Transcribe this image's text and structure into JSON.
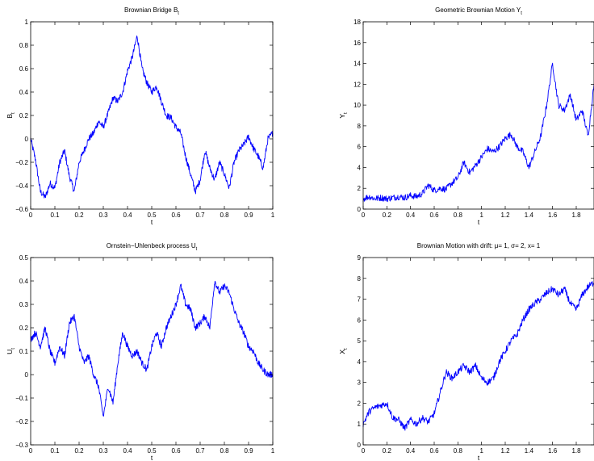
{
  "chart_data": [
    {
      "type": "line",
      "title": "Brownian Bridge B",
      "title_sub": "t",
      "xlabel": "t",
      "ylabel": "B",
      "ylabel_sub": "t",
      "xlim": [
        0,
        1
      ],
      "ylim": [
        -0.6,
        1
      ],
      "xticks": [
        0,
        0.1,
        0.2,
        0.3,
        0.4,
        0.5,
        0.6,
        0.7,
        0.8,
        0.9,
        1
      ],
      "xtick_labels": [
        "0",
        "0.1",
        "0.2",
        "0.3",
        "0.4",
        "0.5",
        "0.6",
        "0.7",
        "0.8",
        "0.9",
        "1"
      ],
      "yticks": [
        -0.6,
        -0.4,
        -0.2,
        0,
        0.2,
        0.4,
        0.6,
        0.8,
        1
      ],
      "ytick_labels": [
        "−0.6",
        "−0.4",
        "−0.2",
        "0",
        "0.2",
        "0.4",
        "0.6",
        "0.8",
        "1"
      ],
      "grid": false,
      "color": "#0000ff",
      "series": [
        {
          "x": [
            0,
            0.02,
            0.04,
            0.06,
            0.08,
            0.1,
            0.12,
            0.14,
            0.16,
            0.18,
            0.2,
            0.22,
            0.24,
            0.26,
            0.28,
            0.3,
            0.32,
            0.34,
            0.36,
            0.38,
            0.4,
            0.42,
            0.44,
            0.46,
            0.48,
            0.5,
            0.52,
            0.54,
            0.56,
            0.58,
            0.6,
            0.62,
            0.64,
            0.66,
            0.68,
            0.7,
            0.72,
            0.74,
            0.76,
            0.78,
            0.8,
            0.82,
            0.84,
            0.86,
            0.88,
            0.9,
            0.92,
            0.94,
            0.96,
            0.98,
            1
          ],
          "y": [
            0,
            -0.18,
            -0.45,
            -0.5,
            -0.38,
            -0.42,
            -0.2,
            -0.1,
            -0.32,
            -0.45,
            -0.2,
            -0.1,
            0.0,
            0.05,
            0.15,
            0.1,
            0.22,
            0.35,
            0.32,
            0.4,
            0.58,
            0.7,
            0.88,
            0.6,
            0.48,
            0.4,
            0.45,
            0.32,
            0.2,
            0.18,
            0.1,
            0.05,
            -0.15,
            -0.3,
            -0.45,
            -0.35,
            -0.1,
            -0.25,
            -0.35,
            -0.2,
            -0.3,
            -0.42,
            -0.2,
            -0.1,
            -0.05,
            0.02,
            -0.08,
            -0.15,
            -0.25,
            0.0,
            0.05
          ]
        }
      ]
    },
    {
      "type": "line",
      "title": "Geometric Brownian Motion Y",
      "title_sub": "t",
      "xlabel": "t",
      "ylabel": "Y",
      "ylabel_sub": "t",
      "xlim": [
        0,
        1.95
      ],
      "ylim": [
        0,
        18
      ],
      "xticks": [
        0,
        0.2,
        0.4,
        0.6,
        0.8,
        1,
        1.2,
        1.4,
        1.6,
        1.8
      ],
      "xtick_labels": [
        "0",
        "0.2",
        "0.4",
        "0.6",
        "0.8",
        "1",
        "1.2",
        "1.4",
        "1.6",
        "1.8"
      ],
      "yticks": [
        0,
        2,
        4,
        6,
        8,
        10,
        12,
        14,
        16,
        18
      ],
      "ytick_labels": [
        "0",
        "2",
        "4",
        "6",
        "8",
        "10",
        "12",
        "14",
        "16",
        "18"
      ],
      "grid": false,
      "color": "#0000ff",
      "series": [
        {
          "x": [
            0,
            0.05,
            0.1,
            0.15,
            0.2,
            0.25,
            0.3,
            0.35,
            0.4,
            0.45,
            0.5,
            0.55,
            0.6,
            0.65,
            0.7,
            0.75,
            0.8,
            0.85,
            0.9,
            0.95,
            1.0,
            1.05,
            1.1,
            1.15,
            1.2,
            1.25,
            1.3,
            1.35,
            1.4,
            1.45,
            1.5,
            1.55,
            1.6,
            1.65,
            1.7,
            1.75,
            1.8,
            1.85,
            1.9,
            1.95
          ],
          "y": [
            1.0,
            1.2,
            1.0,
            1.1,
            1.0,
            1.1,
            1.2,
            1.1,
            1.3,
            1.2,
            1.5,
            2.3,
            1.8,
            2.0,
            1.9,
            2.5,
            3.0,
            4.5,
            3.5,
            4.2,
            5.0,
            5.8,
            5.5,
            6.0,
            6.8,
            7.2,
            6.0,
            5.5,
            4.0,
            5.5,
            7.0,
            10.0,
            14.0,
            10.0,
            9.5,
            11.0,
            8.5,
            9.5,
            7.0,
            12.0
          ]
        }
      ]
    },
    {
      "type": "line",
      "title": "Ornstein−Uhlenbeck process U",
      "title_sub": "t",
      "xlabel": "t",
      "ylabel": "U",
      "ylabel_sub": "t",
      "xlim": [
        0,
        1
      ],
      "ylim": [
        -0.3,
        0.5
      ],
      "xticks": [
        0,
        0.1,
        0.2,
        0.3,
        0.4,
        0.5,
        0.6,
        0.7,
        0.8,
        0.9,
        1
      ],
      "xtick_labels": [
        "0",
        "0.1",
        "0.2",
        "0.3",
        "0.4",
        "0.5",
        "0.6",
        "0.7",
        "0.8",
        "0.9",
        "1"
      ],
      "yticks": [
        -0.3,
        -0.2,
        -0.1,
        0,
        0.1,
        0.2,
        0.3,
        0.4,
        0.5
      ],
      "ytick_labels": [
        "−0.3",
        "−0.2",
        "−0.1",
        "0",
        "0.1",
        "0.2",
        "0.3",
        "0.4",
        "0.5"
      ],
      "grid": false,
      "color": "#0000ff",
      "series": [
        {
          "x": [
            0,
            0.02,
            0.04,
            0.06,
            0.08,
            0.1,
            0.12,
            0.14,
            0.16,
            0.18,
            0.2,
            0.22,
            0.24,
            0.26,
            0.28,
            0.3,
            0.32,
            0.34,
            0.36,
            0.38,
            0.4,
            0.42,
            0.44,
            0.46,
            0.48,
            0.5,
            0.52,
            0.54,
            0.56,
            0.58,
            0.6,
            0.62,
            0.64,
            0.66,
            0.68,
            0.7,
            0.72,
            0.74,
            0.76,
            0.78,
            0.8,
            0.82,
            0.84,
            0.86,
            0.88,
            0.9,
            0.92,
            0.94,
            0.96,
            0.98,
            1
          ],
          "y": [
            0.15,
            0.18,
            0.12,
            0.2,
            0.1,
            0.05,
            0.12,
            0.08,
            0.22,
            0.25,
            0.12,
            0.05,
            0.08,
            0.0,
            -0.05,
            -0.18,
            -0.05,
            -0.12,
            0.05,
            0.18,
            0.12,
            0.08,
            0.1,
            0.05,
            0.02,
            0.12,
            0.18,
            0.12,
            0.2,
            0.25,
            0.3,
            0.38,
            0.3,
            0.28,
            0.2,
            0.22,
            0.25,
            0.2,
            0.4,
            0.35,
            0.38,
            0.35,
            0.28,
            0.22,
            0.18,
            0.12,
            0.1,
            0.05,
            0.02,
            0.0,
            0.0
          ]
        }
      ]
    },
    {
      "type": "line",
      "title": "Brownian Motion with drift: μ= 1, σ= 2, x= 1",
      "xlabel": "t",
      "ylabel": "X",
      "ylabel_sub": "t",
      "xlim": [
        0,
        1.95
      ],
      "ylim": [
        0,
        9
      ],
      "xticks": [
        0,
        0.2,
        0.4,
        0.6,
        0.8,
        1,
        1.2,
        1.4,
        1.6,
        1.8
      ],
      "xtick_labels": [
        "0",
        "0.2",
        "0.4",
        "0.6",
        "0.8",
        "1",
        "1.2",
        "1.4",
        "1.6",
        "1.8"
      ],
      "yticks": [
        0,
        1,
        2,
        3,
        4,
        5,
        6,
        7,
        8,
        9
      ],
      "ytick_labels": [
        "0",
        "1",
        "2",
        "3",
        "4",
        "5",
        "6",
        "7",
        "8",
        "9"
      ],
      "grid": false,
      "color": "#0000ff",
      "series": [
        {
          "x": [
            0,
            0.05,
            0.1,
            0.15,
            0.2,
            0.25,
            0.3,
            0.35,
            0.4,
            0.45,
            0.5,
            0.55,
            0.6,
            0.65,
            0.7,
            0.75,
            0.8,
            0.85,
            0.9,
            0.95,
            1.0,
            1.05,
            1.1,
            1.15,
            1.2,
            1.25,
            1.3,
            1.35,
            1.4,
            1.45,
            1.5,
            1.55,
            1.6,
            1.65,
            1.7,
            1.75,
            1.8,
            1.85,
            1.9,
            1.95
          ],
          "y": [
            1.0,
            1.6,
            1.8,
            1.9,
            2.0,
            1.3,
            1.2,
            0.8,
            1.2,
            1.0,
            1.3,
            1.1,
            1.5,
            2.5,
            3.5,
            3.2,
            3.5,
            3.8,
            3.5,
            3.8,
            3.2,
            3.0,
            3.2,
            4.0,
            4.5,
            5.0,
            5.3,
            6.0,
            6.5,
            6.8,
            7.0,
            7.3,
            7.5,
            7.2,
            7.5,
            6.8,
            6.5,
            7.2,
            7.6,
            7.8
          ]
        }
      ]
    }
  ]
}
